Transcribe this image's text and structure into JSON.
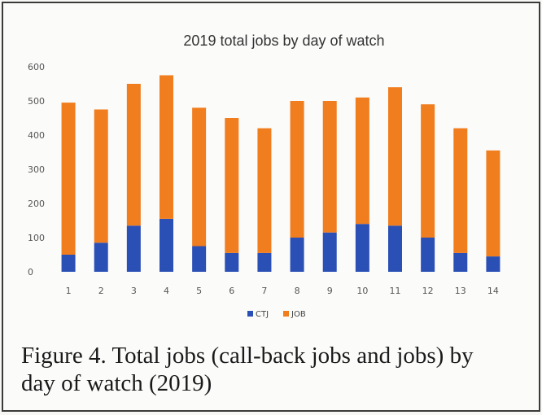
{
  "chart_data": {
    "type": "bar",
    "stacked": true,
    "title": "2019 total jobs by day of watch",
    "categories": [
      "1",
      "2",
      "3",
      "4",
      "5",
      "6",
      "7",
      "8",
      "9",
      "10",
      "11",
      "12",
      "13",
      "14"
    ],
    "series": [
      {
        "name": "CTJ",
        "color": "#2a4fb5",
        "values": [
          50,
          85,
          135,
          155,
          75,
          55,
          55,
          100,
          115,
          140,
          135,
          100,
          55,
          45
        ]
      },
      {
        "name": "JOB",
        "color": "#f07d1e",
        "values": [
          445,
          390,
          415,
          420,
          405,
          395,
          365,
          400,
          385,
          370,
          405,
          390,
          365,
          310
        ]
      }
    ],
    "ylim": [
      0,
      600
    ],
    "yticks": [
      "0",
      "100",
      "200",
      "300",
      "400",
      "500",
      "600"
    ],
    "grid": false,
    "legend": "bottom"
  },
  "caption": {
    "line1": "Figure 4. Total jobs (call-back jobs and jobs) by",
    "line2": "day of watch (2019)"
  }
}
